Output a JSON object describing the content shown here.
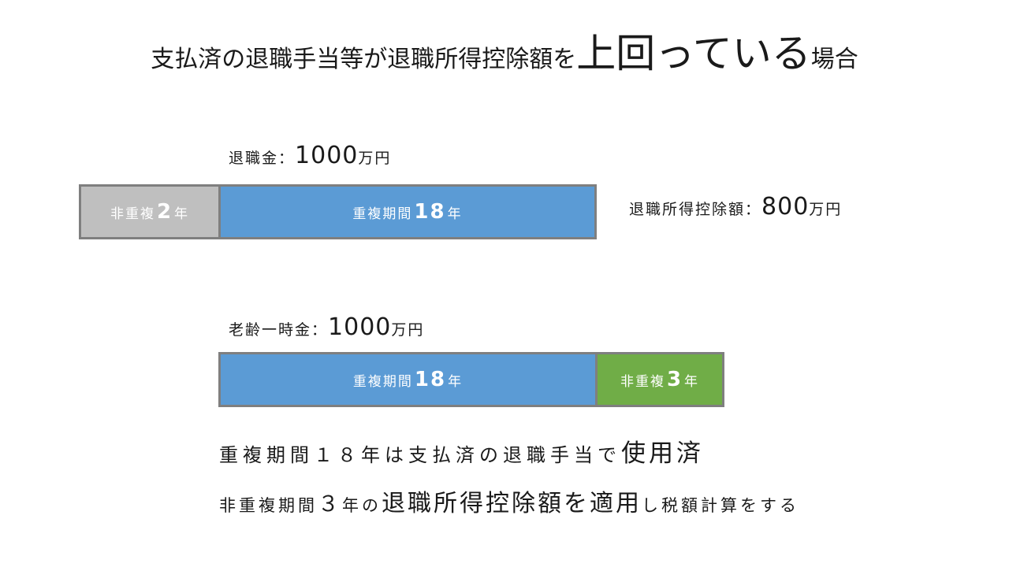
{
  "title": {
    "part1": "支払済の退職手当等が退職所得控除額を",
    "emph": "上回っている",
    "part2": "場合"
  },
  "retirement": {
    "label": "退職金：",
    "amount": "1000",
    "unit": "万円",
    "bar_nonoverlap": {
      "label": "非重複",
      "num": "2",
      "unit": "年",
      "years": 2,
      "color": "#bfbfbf"
    },
    "bar_overlap": {
      "label": "重複期間",
      "num": "18",
      "unit": "年",
      "years": 18,
      "color": "#5b9bd5"
    }
  },
  "deduction": {
    "label": "退職所得控除額：",
    "amount": "800",
    "unit": "万円"
  },
  "pension": {
    "label": "老齢一時金：",
    "amount": "1000",
    "unit": "万円",
    "bar_overlap": {
      "label": "重複期間",
      "num": "18",
      "unit": "年",
      "years": 18,
      "color": "#5b9bd5"
    },
    "bar_nonoverlap": {
      "label": "非重複",
      "num": "3",
      "unit": "年",
      "years": 3,
      "color": "#70ad47"
    }
  },
  "note1": {
    "part1": "重複期間１８年は支払済の退職手当で",
    "emph": "使用済"
  },
  "note2": {
    "part1": "非重複期間",
    "num": "３",
    "part2": "年の",
    "emph": "退職所得控除額を適用",
    "part3": "し税額計算をする"
  }
}
